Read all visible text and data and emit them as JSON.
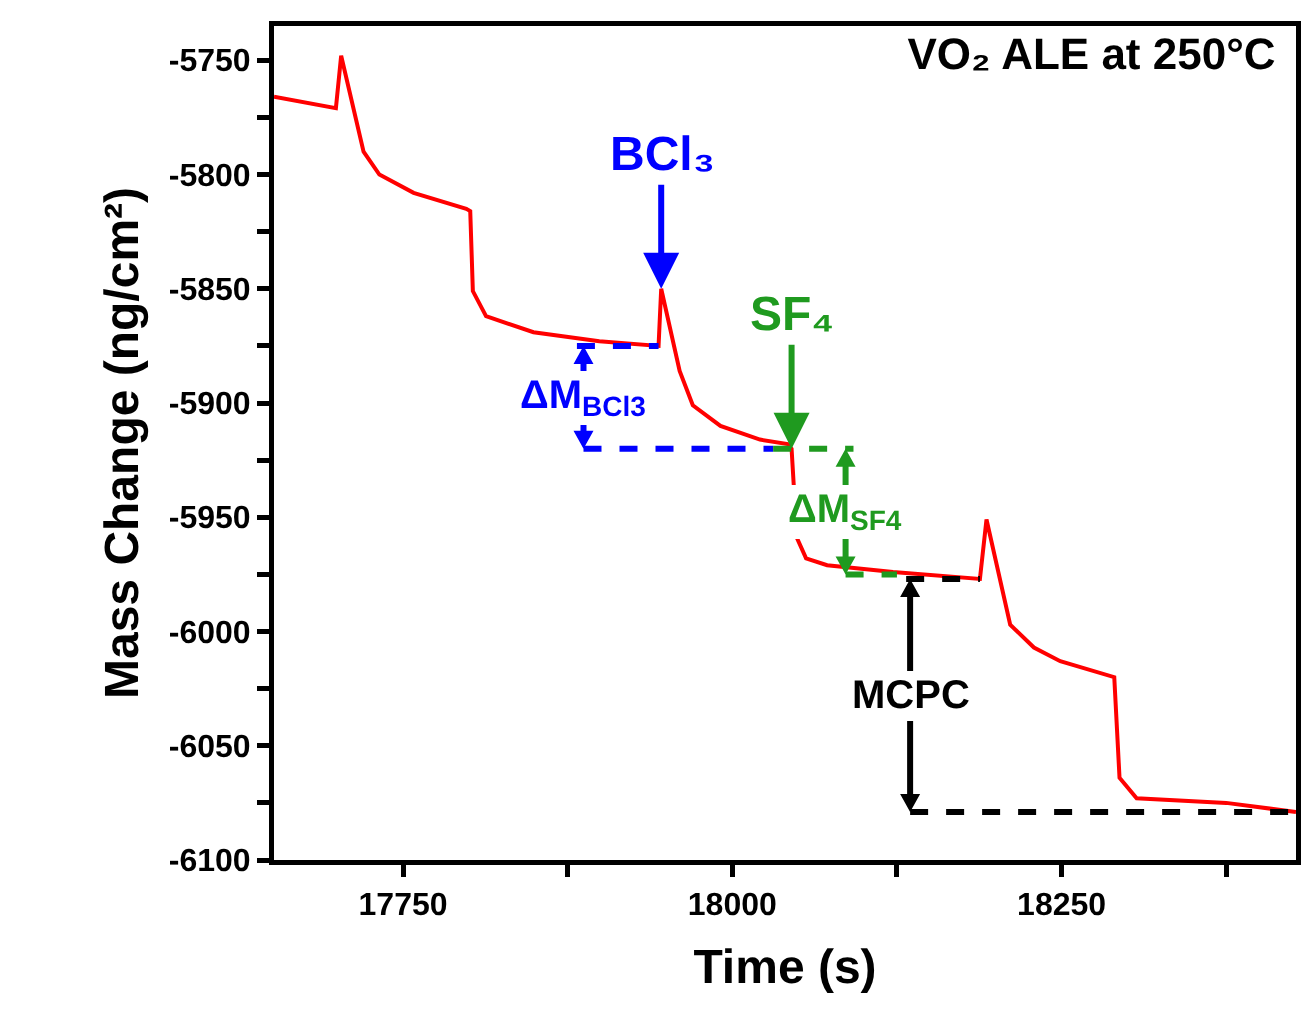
{
  "chart_data": {
    "type": "line",
    "title": "VO₂ ALE at 250°C",
    "xlabel": "Time (s)",
    "ylabel": "Mass Change (ng/cm²)",
    "xlim": [
      17652,
      18428
    ],
    "ylim": [
      -6100,
      -5735
    ],
    "xticks": [
      {
        "value": 17750,
        "label": "17750"
      },
      {
        "value": 17875,
        "label": null
      },
      {
        "value": 18000,
        "label": "18000"
      },
      {
        "value": 18125,
        "label": null
      },
      {
        "value": 18250,
        "label": "18250"
      },
      {
        "value": 18375,
        "label": null
      }
    ],
    "yticks": [
      -5750,
      {
        "value": -5775,
        "label": null
      },
      -5800,
      {
        "value": -5825,
        "label": null
      },
      -5850,
      {
        "value": -5875,
        "label": null
      },
      -5900,
      {
        "value": -5925,
        "label": null
      },
      -5950,
      {
        "value": -5975,
        "label": null
      },
      -6000,
      {
        "value": -6025,
        "label": null
      },
      -6050,
      {
        "value": -6075,
        "label": null
      },
      -6100
    ],
    "grid": false,
    "marker": "none",
    "series": [
      {
        "color": "#ff0000",
        "line_style": "solid",
        "x": [
          17652,
          17699,
          17703,
          17720,
          17732,
          17758,
          17798,
          17801,
          17803,
          17813,
          17849,
          17899,
          17944,
          17946,
          17960,
          17970,
          17991,
          18021,
          18042,
          18045,
          18049,
          18056,
          18072,
          18122,
          18188,
          18193,
          18211,
          18229,
          18249,
          18290,
          18294,
          18307,
          18375,
          18428
        ],
        "values": [
          -5766,
          -5771,
          -5748,
          -5790,
          -5800,
          -5808,
          -5815,
          -5816,
          -5851,
          -5862,
          -5869,
          -5873,
          -5875,
          -5850,
          -5886,
          -5901,
          -5910,
          -5916,
          -5918,
          -5920,
          -5959,
          -5968,
          -5971,
          -5974,
          -5977,
          -5951,
          -5997,
          -6007,
          -6013,
          -6020,
          -6064,
          -6073,
          -6075,
          -6079
        ]
      },
      {
        "color": "#0000ff",
        "line_style": "dashed",
        "x": [
          17882,
          17944
        ],
        "values": [
          -5875,
          -5875
        ]
      },
      {
        "color": "#0000ff",
        "line_style": "dashed",
        "x": [
          17887,
          18031
        ],
        "values": [
          -5920,
          -5920
        ]
      },
      {
        "color": "#1f9a1f",
        "line_style": "dashed",
        "x": [
          18031,
          18092
        ],
        "values": [
          -5920,
          -5920
        ]
      },
      {
        "color": "#1f9a1f",
        "line_style": "dashed",
        "x": [
          18086,
          18125
        ],
        "values": [
          -5975,
          -5975
        ]
      },
      {
        "color": "#000000",
        "line_style": "dashed",
        "x": [
          18132,
          18188
        ],
        "values": [
          -5977,
          -5977
        ]
      },
      {
        "color": "#000000",
        "line_style": "dashed",
        "x": [
          18135,
          18428
        ],
        "values": [
          -6079,
          -6079
        ]
      }
    ],
    "annotations": [
      {
        "text": "BCl₃",
        "x": 17946,
        "y": -5850
      },
      {
        "text": "SF₄",
        "x": 18045,
        "y": -5920
      },
      "ΔM$_{BCl3}$",
      "ΔM$_{SF4}$",
      "MCPC"
    ]
  }
}
